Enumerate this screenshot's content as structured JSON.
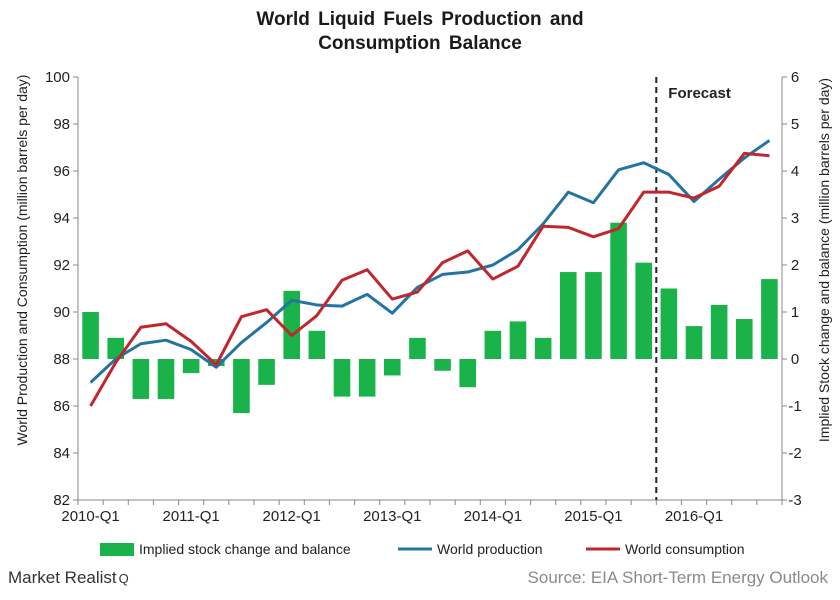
{
  "chart_data": {
    "type": "bar+line",
    "title_line1": "World Liquid Fuels Production and",
    "title_line2": "Consumption Balance",
    "ylabel_left": "World Production and Consumption (million barrels per day)",
    "ylabel_right": "Implied Stock change and balance (million barrels per day)",
    "ylim_left": [
      82,
      100
    ],
    "ylim_right": [
      -3,
      6
    ],
    "yticks_left": [
      "82",
      "84",
      "86",
      "88",
      "90",
      "92",
      "94",
      "96",
      "98",
      "100"
    ],
    "yticks_right": [
      "-3",
      "-2",
      "-1",
      "0",
      "1",
      "2",
      "3",
      "4",
      "5",
      "6"
    ],
    "x_tick_labels": [
      "2010-Q1",
      "2011-Q1",
      "2012-Q1",
      "2013-Q1",
      "2014-Q1",
      "2015-Q1",
      "2016-Q1"
    ],
    "periods": [
      "2010-Q1",
      "2010-Q2",
      "2010-Q3",
      "2010-Q4",
      "2011-Q1",
      "2011-Q2",
      "2011-Q3",
      "2011-Q4",
      "2012-Q1",
      "2012-Q2",
      "2012-Q3",
      "2012-Q4",
      "2013-Q1",
      "2013-Q2",
      "2013-Q3",
      "2013-Q4",
      "2014-Q1",
      "2014-Q2",
      "2014-Q3",
      "2014-Q4",
      "2015-Q1",
      "2015-Q2",
      "2015-Q3",
      "2015-Q4",
      "2016-Q1",
      "2016-Q2",
      "2016-Q3",
      "2016-Q4"
    ],
    "forecast_label": "Forecast",
    "forecast_start": "2015-Q4",
    "series": [
      {
        "name": "Implied stock change and balance",
        "kind": "bar",
        "axis": "right",
        "color": "#19b34a",
        "values": [
          1.0,
          0.45,
          -0.85,
          -0.85,
          -0.3,
          -0.15,
          -1.15,
          -0.55,
          1.45,
          0.6,
          -0.8,
          -0.8,
          -0.35,
          0.45,
          -0.25,
          -0.6,
          0.6,
          0.8,
          0.45,
          1.85,
          1.85,
          2.9,
          2.05,
          1.5,
          0.7,
          1.15,
          0.85,
          1.7
        ]
      },
      {
        "name": "World production",
        "kind": "line",
        "axis": "left",
        "color": "#2474a2",
        "values": [
          87.0,
          88.0,
          88.65,
          88.8,
          88.4,
          87.65,
          88.7,
          89.55,
          90.5,
          90.3,
          90.25,
          90.75,
          89.95,
          91.05,
          91.6,
          91.7,
          92.0,
          92.65,
          93.75,
          95.1,
          94.65,
          96.05,
          96.35,
          95.85,
          94.7,
          95.65,
          96.55,
          97.3
        ]
      },
      {
        "name": "World consumption",
        "kind": "line",
        "axis": "left",
        "color": "#c0272d",
        "values": [
          86.0,
          87.85,
          89.35,
          89.5,
          88.75,
          87.75,
          89.8,
          90.1,
          89.0,
          89.85,
          91.35,
          91.8,
          90.55,
          90.85,
          92.1,
          92.6,
          91.4,
          91.95,
          93.65,
          93.6,
          93.2,
          93.55,
          95.1,
          95.1,
          94.85,
          95.35,
          96.75,
          96.65
        ]
      }
    ],
    "legend_position": "bottom",
    "grid": false
  },
  "footer": {
    "brand": "Market Realist",
    "brand_mark": "Q",
    "source": "Source: EIA Short-Term Energy Outlook"
  }
}
